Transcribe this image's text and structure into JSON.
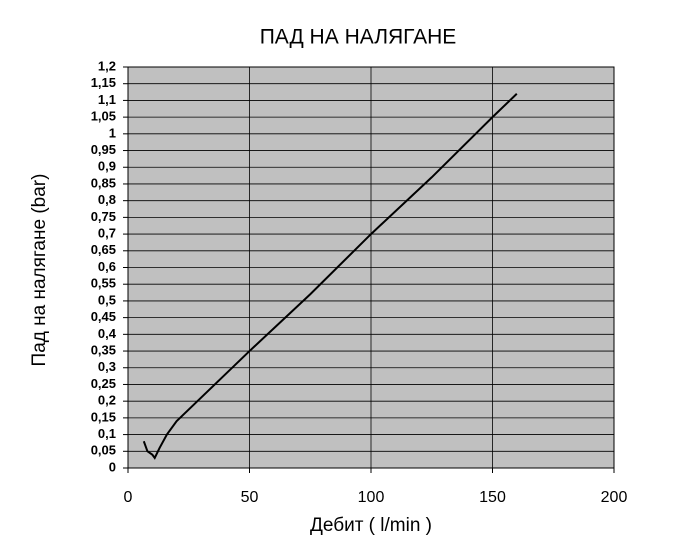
{
  "chart_data": {
    "type": "line",
    "title": "ПАД НА НАЛЯГАНЕ",
    "x_label": "Дебит ( l/min )",
    "y_label": "Пад на налягане (bar)",
    "x": [
      6.5,
      8,
      10,
      11,
      13,
      16,
      20,
      30,
      40,
      50,
      75,
      100,
      125,
      150,
      160
    ],
    "values": [
      0.08,
      0.05,
      0.04,
      0.03,
      0.06,
      0.1,
      0.14,
      0.21,
      0.28,
      0.35,
      0.52,
      0.7,
      0.87,
      1.05,
      1.12
    ],
    "color": "#000000",
    "background": "#c0c0c0",
    "grid": true,
    "xlim": [
      0,
      200
    ],
    "xticks": [
      0,
      50,
      100,
      150,
      200
    ],
    "ylim": [
      0,
      1.2
    ],
    "yticks": [
      0,
      {
        "value": 0.05,
        "label": "0,05"
      },
      {
        "value": 0.1,
        "label": "0,1"
      },
      {
        "value": 0.15,
        "label": "0,15"
      },
      {
        "value": 0.2,
        "label": "0,2"
      },
      {
        "value": 0.25,
        "label": "0,25"
      },
      {
        "value": 0.3,
        "label": "0,3"
      },
      {
        "value": 0.35,
        "label": "0,35"
      },
      {
        "value": 0.4,
        "label": "0,4"
      },
      {
        "value": 0.45,
        "label": "0,45"
      },
      {
        "value": 0.5,
        "label": "0,5"
      },
      {
        "value": 0.55,
        "label": "0,55"
      },
      {
        "value": 0.6,
        "label": "0,6"
      },
      {
        "value": 0.65,
        "label": "0,65"
      },
      {
        "value": 0.7,
        "label": "0,7"
      },
      {
        "value": 0.75,
        "label": "0,75"
      },
      {
        "value": 0.8,
        "label": "0,8"
      },
      {
        "value": 0.85,
        "label": "0,85"
      },
      {
        "value": 0.9,
        "label": "0,9"
      },
      {
        "value": 0.95,
        "label": "0,95"
      },
      1,
      {
        "value": 1.05,
        "label": "1,05"
      },
      {
        "value": 1.1,
        "label": "1,1"
      },
      {
        "value": 1.15,
        "label": "1,15"
      },
      {
        "value": 1.2,
        "label": "1,2"
      }
    ]
  }
}
